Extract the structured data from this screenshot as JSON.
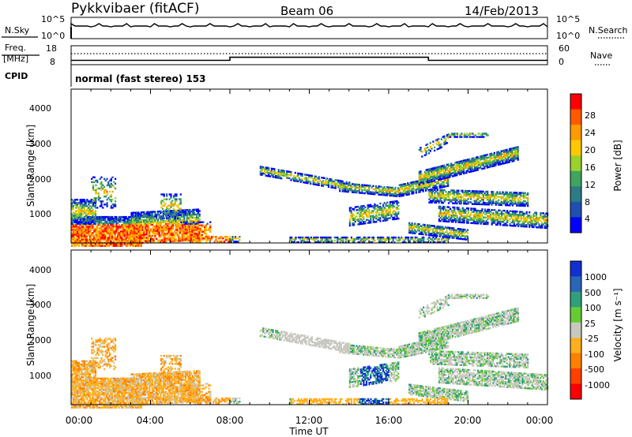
{
  "header": {
    "station": "Pykkvibaer (fitACF)",
    "beam": "Beam 06",
    "date": "14/Feb/2013"
  },
  "noise_panel": {
    "left_label": "N.Sky",
    "right_label": "N.Search",
    "y_ticks": [
      "10^5",
      "10^0"
    ]
  },
  "freq_panel": {
    "left_label_1": "Freq.",
    "left_label_2": "[MHz]",
    "left_ticks": [
      "18",
      "8"
    ],
    "right_label": "Nave",
    "right_ticks": [
      "60",
      "0"
    ]
  },
  "cpid": {
    "label": "CPID",
    "text": "normal (fast stereo) 153"
  },
  "power_panel": {
    "ylabel": "Slant Range [km]",
    "y_ticks": [
      "4000",
      "3000",
      "2000",
      "1000"
    ],
    "colorbar_label": "Power [dB]",
    "colorbar_ticks": [
      "28",
      "24",
      "20",
      "16",
      "12",
      "8",
      "4"
    ],
    "colorbar_colors": [
      "#ff0000",
      "#ff5a00",
      "#ff9a00",
      "#ffc800",
      "#9bd12c",
      "#3ea55f",
      "#2c7c86",
      "#1f4fb0",
      "#0000ff"
    ]
  },
  "velocity_panel": {
    "ylabel": "Slant Range [km]",
    "y_ticks": [
      "4000",
      "3000",
      "2000",
      "1000"
    ],
    "colorbar_label": "Velocity [m s⁻¹]",
    "colorbar_ticks": [
      "1000",
      "500",
      "100",
      "25",
      "-25",
      "-100",
      "-500",
      "-1000"
    ],
    "colorbar_colors": [
      "#1030d0",
      "#2a66b8",
      "#2ea07a",
      "#66cc33",
      "#c8c8c0",
      "#ffb020",
      "#ff8000",
      "#ff4000",
      "#ff0000"
    ]
  },
  "xaxis": {
    "label": "Time UT",
    "ticks": [
      "00:00",
      "04:00",
      "08:00",
      "12:00",
      "16:00",
      "20:00",
      "00:00"
    ]
  },
  "chart_data": [
    {
      "type": "line",
      "title": "",
      "name": "noise",
      "x": [
        "00:00",
        "24:00"
      ],
      "ylim_label": [
        "10^0",
        "10^5"
      ],
      "series": [
        {
          "name": "N.Sky",
          "values": [
            3.2,
            3.2
          ]
        },
        {
          "name": "N.Search",
          "values": [
            3.2,
            3.2
          ]
        }
      ]
    },
    {
      "type": "line",
      "name": "frequency",
      "ylim": [
        8,
        18
      ],
      "x": [
        0,
        8,
        8,
        18,
        18,
        24
      ],
      "series": [
        {
          "name": "Freq.",
          "values": [
            10.3,
            10.3,
            11.9,
            11.9,
            10.3,
            10.3
          ]
        }
      ]
    },
    {
      "type": "heatmap",
      "name": "power",
      "xlim": [
        0,
        24
      ],
      "ylim": [
        180,
        4500
      ],
      "xlabel": "Time UT",
      "ylabel": "Slant Range [km]",
      "colorbar": "Power [dB]"
    },
    {
      "type": "heatmap",
      "name": "velocity",
      "xlim": [
        0,
        24
      ],
      "ylim": [
        180,
        4500
      ],
      "xlabel": "Time UT",
      "ylabel": "Slant Range [km]",
      "colorbar": "Velocity [m s⁻¹]"
    }
  ]
}
